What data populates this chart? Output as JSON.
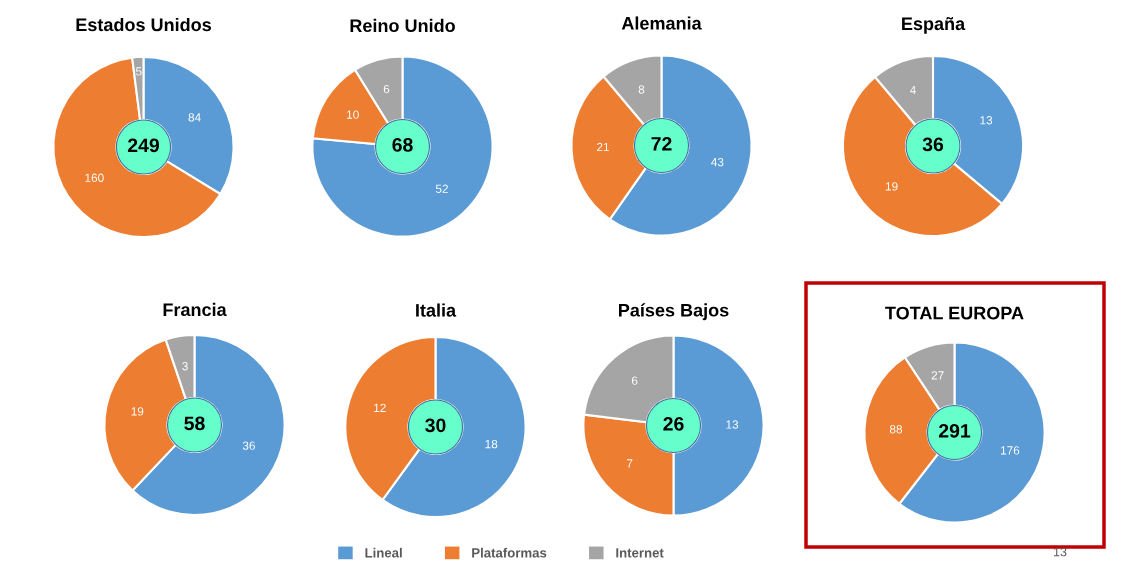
{
  "chart_data": [
    {
      "type": "donut",
      "title": "Estados Unidos",
      "categories": [
        "Lineal",
        "Plataformas",
        "Internet"
      ],
      "values": [
        84,
        160,
        5
      ],
      "colors": [
        "#5b9bd5",
        "#ed7d31",
        "#a5a5a5"
      ],
      "data_labels": true,
      "annotations": [
        "249"
      ],
      "legend": "bottom"
    },
    {
      "type": "donut",
      "title": "Reino Unido",
      "categories": [
        null,
        null,
        null
      ],
      "values": [
        52,
        10,
        6
      ],
      "colors": [
        "#5b9bd5",
        "#ed7d31",
        "#a5a5a5"
      ],
      "data_labels": true,
      "annotations": [
        "68"
      ]
    },
    {
      "type": "donut",
      "title": "Alemania",
      "categories": [
        null,
        null,
        null
      ],
      "values": [
        43,
        21,
        8
      ],
      "colors": [
        "#5b9bd5",
        "#ed7d31",
        "#a5a5a5"
      ],
      "data_labels": true,
      "annotations": [
        "72"
      ]
    },
    {
      "type": "donut",
      "title": "España",
      "categories": [
        null,
        null,
        null
      ],
      "values": [
        13,
        19,
        4
      ],
      "colors": [
        "#5b9bd5",
        "#ed7d31",
        "#a5a5a5"
      ],
      "data_labels": true,
      "annotations": [
        "36"
      ]
    },
    {
      "type": "donut",
      "title": "Francia",
      "categories": [
        null,
        null,
        null
      ],
      "values": [
        36,
        19,
        3
      ],
      "colors": [
        "#5b9bd5",
        "#ed7d31",
        "#a5a5a5"
      ],
      "data_labels": true,
      "annotations": [
        "58"
      ]
    },
    {
      "type": "donut",
      "title": "Italia",
      "categories": [
        null,
        null
      ],
      "values": [
        18,
        12
      ],
      "colors": [
        "#5b9bd5",
        "#ed7d31"
      ],
      "data_labels": true,
      "annotations": [
        "30"
      ]
    },
    {
      "type": "donut",
      "title": "Países Bajos",
      "categories": [
        null,
        null,
        null
      ],
      "values": [
        13,
        7,
        6
      ],
      "colors": [
        "#5b9bd5",
        "#ed7d31",
        "#a5a5a5"
      ],
      "data_labels": true,
      "annotations": [
        "26"
      ]
    },
    {
      "type": "donut",
      "title": "TOTAL EUROPA",
      "categories": [
        null,
        null,
        null
      ],
      "values": [
        176,
        88,
        27
      ],
      "colors": [
        "#5b9bd5",
        "#ed7d31",
        "#a5a5a5"
      ],
      "data_labels": true,
      "annotations": [
        "291",
        "13"
      ]
    }
  ]
}
